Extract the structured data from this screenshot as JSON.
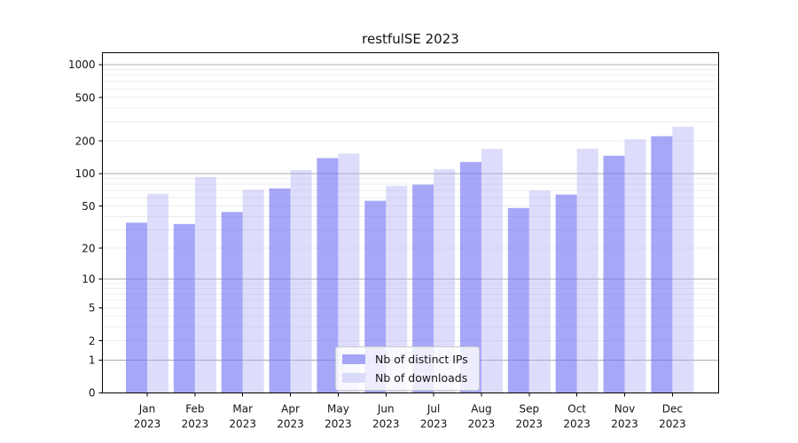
{
  "chart_data": {
    "type": "bar",
    "title": "restfulSE 2023",
    "categories": [
      {
        "month": "Jan",
        "year": "2023"
      },
      {
        "month": "Feb",
        "year": "2023"
      },
      {
        "month": "Mar",
        "year": "2023"
      },
      {
        "month": "Apr",
        "year": "2023"
      },
      {
        "month": "May",
        "year": "2023"
      },
      {
        "month": "Jun",
        "year": "2023"
      },
      {
        "month": "Jul",
        "year": "2023"
      },
      {
        "month": "Aug",
        "year": "2023"
      },
      {
        "month": "Sep",
        "year": "2023"
      },
      {
        "month": "Oct",
        "year": "2023"
      },
      {
        "month": "Nov",
        "year": "2023"
      },
      {
        "month": "Dec",
        "year": "2023"
      }
    ],
    "series": [
      {
        "name": "Nb of distinct IPs",
        "color": "rgba(120,120,245,0.65)",
        "values": [
          35,
          34,
          44,
          73,
          139,
          56,
          79,
          128,
          48,
          64,
          146,
          221
        ]
      },
      {
        "name": "Nb of downloads",
        "color": "rgba(175,175,245,0.42)",
        "values": [
          65,
          93,
          71,
          108,
          153,
          77,
          110,
          169,
          70,
          170,
          207,
          270
        ]
      }
    ],
    "xlabel": "",
    "ylabel": "",
    "yscale": "log1p",
    "ylim": [
      0,
      1290
    ],
    "yticks": [
      0,
      1,
      2,
      5,
      10,
      20,
      50,
      100,
      200,
      500,
      1000
    ],
    "grid": {
      "on": true,
      "major_values": [
        1,
        10,
        100,
        1000
      ],
      "minor_decades": [
        1,
        10,
        100
      ],
      "major_color": "#ababab",
      "minor_color": "#ececec"
    },
    "legend_position": "lower center",
    "axis_color": "#000000",
    "text_color": "#141414"
  }
}
